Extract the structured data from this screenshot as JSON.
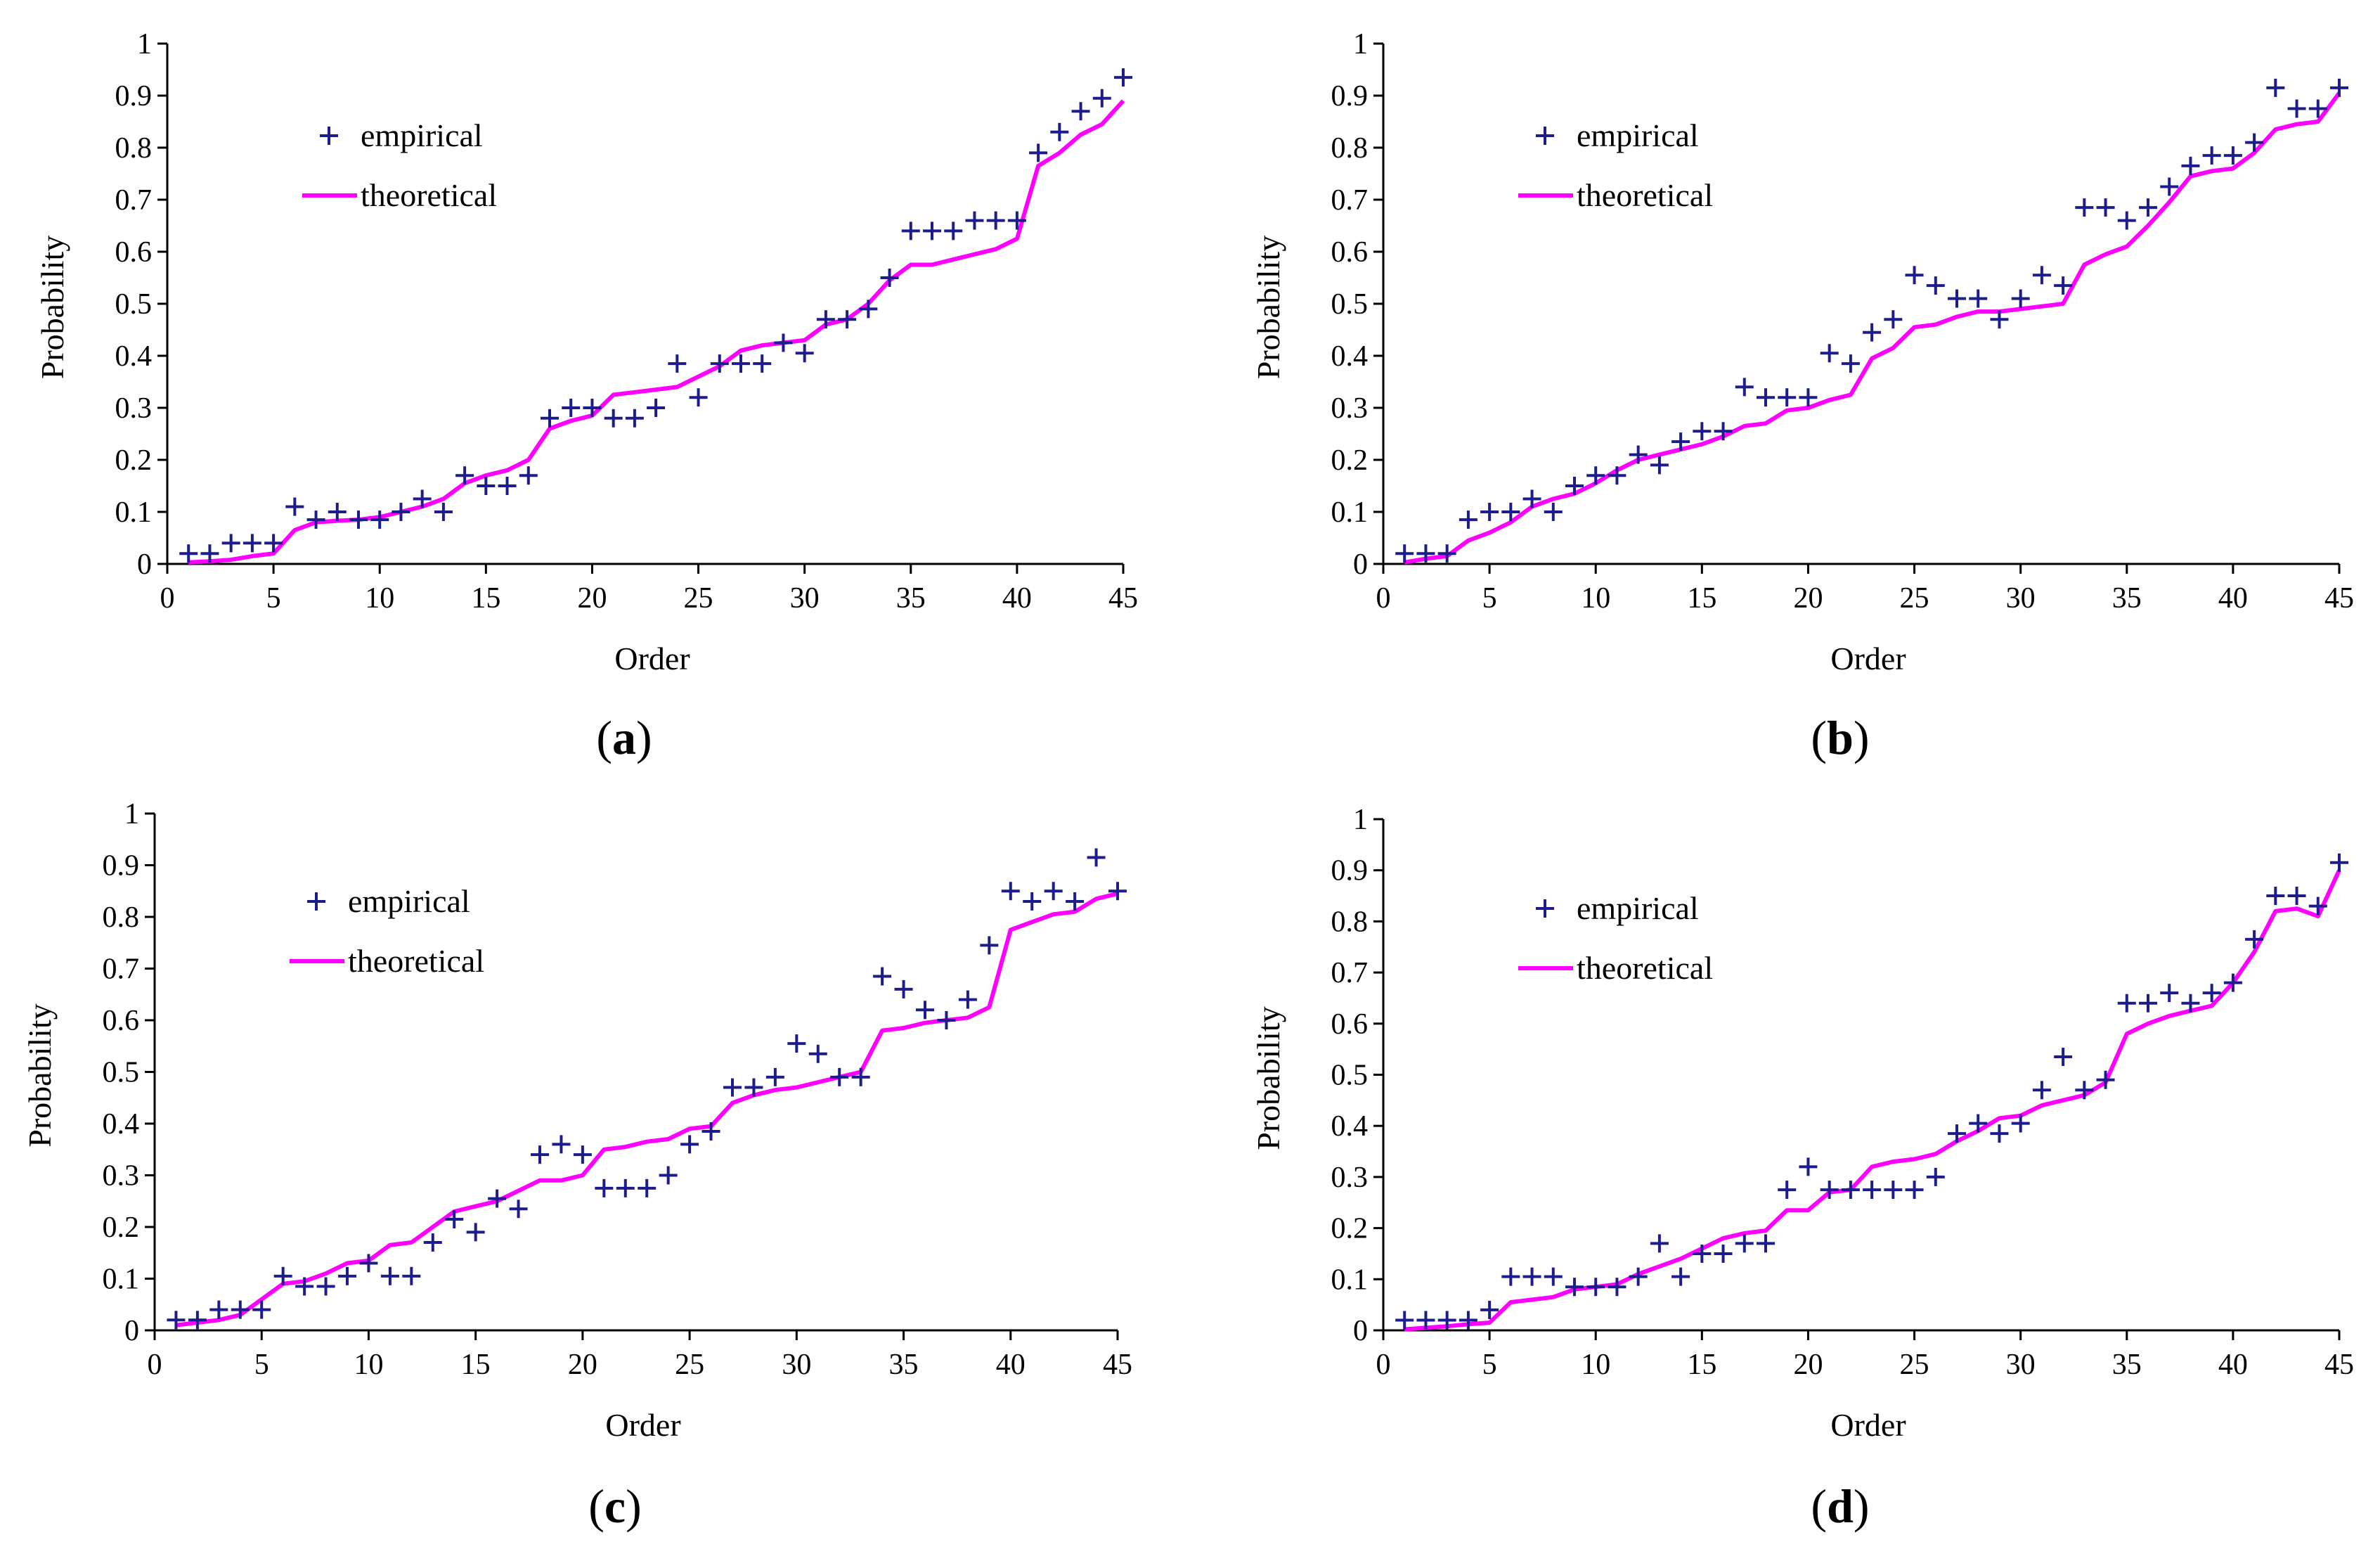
{
  "colors": {
    "empirical": "#1c1c8c",
    "theoretical": "#ff00ff",
    "axis": "#000000"
  },
  "chart_data": [
    {
      "type": "scatter",
      "panel": "a",
      "xlabel": "Order",
      "ylabel": "Probability",
      "xlim": [
        0,
        45
      ],
      "ylim": [
        0,
        1
      ],
      "xticks": [
        "0",
        "5",
        "10",
        "15",
        "20",
        "25",
        "30",
        "35",
        "40",
        "45"
      ],
      "yticks": [
        "0",
        "0.1",
        "0.2",
        "0.3",
        "0.4",
        "0.5",
        "0.6",
        "0.7",
        "0.8",
        "0.9",
        "1"
      ],
      "legend": {
        "empirical": "empirical",
        "theoretical": "theoretical"
      },
      "series": [
        {
          "name": "empirical",
          "values": [
            0.02,
            0.02,
            0.04,
            0.04,
            0.04,
            0.11,
            0.085,
            0.1,
            0.085,
            0.085,
            0.1,
            0.125,
            0.1,
            0.17,
            0.15,
            0.15,
            0.17,
            0.28,
            0.3,
            0.3,
            0.28,
            0.28,
            0.3,
            0.385,
            0.32,
            0.385,
            0.385,
            0.385,
            0.425,
            0.405,
            0.47,
            0.47,
            0.49,
            0.55,
            0.64,
            0.64,
            0.64,
            0.66,
            0.66,
            0.66,
            0.79,
            0.83,
            0.87,
            0.895,
            0.935
          ]
        },
        {
          "name": "theoretical",
          "values": [
            0.003,
            0.005,
            0.008,
            0.015,
            0.02,
            0.065,
            0.08,
            0.083,
            0.085,
            0.09,
            0.1,
            0.11,
            0.125,
            0.155,
            0.17,
            0.18,
            0.2,
            0.26,
            0.275,
            0.285,
            0.325,
            0.33,
            0.335,
            0.34,
            0.36,
            0.38,
            0.41,
            0.42,
            0.425,
            0.43,
            0.46,
            0.47,
            0.5,
            0.545,
            0.575,
            0.575,
            0.585,
            0.595,
            0.605,
            0.625,
            0.765,
            0.79,
            0.825,
            0.845,
            0.89
          ]
        }
      ]
    },
    {
      "type": "scatter",
      "panel": "b",
      "xlabel": "Order",
      "ylabel": "Probability",
      "xlim": [
        0,
        45
      ],
      "ylim": [
        0,
        1
      ],
      "xticks": [
        "0",
        "5",
        "10",
        "15",
        "20",
        "25",
        "30",
        "35",
        "40",
        "45"
      ],
      "yticks": [
        "0",
        "0.1",
        "0.2",
        "0.3",
        "0.4",
        "0.5",
        "0.6",
        "0.7",
        "0.8",
        "0.9",
        "1"
      ],
      "legend": {
        "empirical": "empirical",
        "theoretical": "theoretical"
      },
      "series": [
        {
          "name": "empirical",
          "values": [
            0.02,
            0.02,
            0.02,
            0.085,
            0.1,
            0.1,
            0.125,
            0.1,
            0.15,
            0.17,
            0.17,
            0.21,
            0.19,
            0.235,
            0.255,
            0.255,
            0.34,
            0.32,
            0.32,
            0.32,
            0.405,
            0.385,
            0.445,
            0.47,
            0.555,
            0.535,
            0.51,
            0.51,
            0.47,
            0.51,
            0.555,
            0.535,
            0.685,
            0.685,
            0.66,
            0.685,
            0.725,
            0.765,
            0.785,
            0.785,
            0.81,
            0.915,
            0.875,
            0.875,
            0.915
          ]
        },
        {
          "name": "theoretical",
          "values": [
            0.003,
            0.01,
            0.015,
            0.045,
            0.06,
            0.08,
            0.11,
            0.125,
            0.135,
            0.155,
            0.18,
            0.2,
            0.21,
            0.22,
            0.23,
            0.245,
            0.265,
            0.27,
            0.295,
            0.3,
            0.315,
            0.325,
            0.395,
            0.415,
            0.455,
            0.46,
            0.475,
            0.485,
            0.485,
            0.49,
            0.495,
            0.5,
            0.575,
            0.595,
            0.61,
            0.65,
            0.695,
            0.745,
            0.755,
            0.76,
            0.79,
            0.835,
            0.845,
            0.85,
            0.905
          ]
        }
      ]
    },
    {
      "type": "scatter",
      "panel": "c",
      "xlabel": "Order",
      "ylabel": "Probability",
      "xlim": [
        0,
        45
      ],
      "ylim": [
        0,
        1
      ],
      "xticks": [
        "0",
        "5",
        "10",
        "15",
        "20",
        "25",
        "30",
        "35",
        "40",
        "45"
      ],
      "yticks": [
        "0",
        "0.1",
        "0.2",
        "0.3",
        "0.4",
        "0.5",
        "0.6",
        "0.7",
        "0.8",
        "0.9",
        "1"
      ],
      "legend": {
        "empirical": "empirical",
        "theoretical": "theoretical"
      },
      "series": [
        {
          "name": "empirical",
          "values": [
            0.02,
            0.02,
            0.04,
            0.04,
            0.04,
            0.105,
            0.085,
            0.085,
            0.105,
            0.13,
            0.105,
            0.105,
            0.17,
            0.215,
            0.19,
            0.255,
            0.235,
            0.34,
            0.36,
            0.34,
            0.275,
            0.275,
            0.275,
            0.3,
            0.36,
            0.385,
            0.47,
            0.47,
            0.49,
            0.555,
            0.535,
            0.49,
            0.49,
            0.685,
            0.66,
            0.62,
            0.6,
            0.64,
            0.745,
            0.85,
            0.83,
            0.85,
            0.83,
            0.915,
            0.85
          ]
        },
        {
          "name": "theoretical",
          "values": [
            0.01,
            0.015,
            0.02,
            0.03,
            0.06,
            0.09,
            0.095,
            0.11,
            0.13,
            0.135,
            0.165,
            0.17,
            0.2,
            0.23,
            0.24,
            0.25,
            0.27,
            0.29,
            0.29,
            0.3,
            0.35,
            0.355,
            0.365,
            0.37,
            0.39,
            0.395,
            0.44,
            0.455,
            0.465,
            0.47,
            0.48,
            0.49,
            0.5,
            0.58,
            0.585,
            0.595,
            0.6,
            0.605,
            0.625,
            0.775,
            0.79,
            0.805,
            0.81,
            0.835,
            0.845
          ]
        }
      ]
    },
    {
      "type": "scatter",
      "panel": "d",
      "xlabel": "Order",
      "ylabel": "Probability",
      "xlim": [
        0,
        45
      ],
      "ylim": [
        0,
        1
      ],
      "xticks": [
        "0",
        "5",
        "10",
        "15",
        "20",
        "25",
        "30",
        "35",
        "40",
        "45"
      ],
      "yticks": [
        "0",
        "0.1",
        "0.2",
        "0.3",
        "0.4",
        "0.5",
        "0.6",
        "0.7",
        "0.8",
        "0.9",
        "1"
      ],
      "legend": {
        "empirical": "empirical",
        "theoretical": "theoretical"
      },
      "series": [
        {
          "name": "empirical",
          "values": [
            0.02,
            0.02,
            0.02,
            0.02,
            0.04,
            0.105,
            0.105,
            0.105,
            0.085,
            0.085,
            0.085,
            0.105,
            0.17,
            0.105,
            0.15,
            0.15,
            0.17,
            0.17,
            0.275,
            0.32,
            0.275,
            0.275,
            0.275,
            0.275,
            0.275,
            0.3,
            0.385,
            0.405,
            0.385,
            0.405,
            0.47,
            0.535,
            0.47,
            0.49,
            0.64,
            0.64,
            0.66,
            0.64,
            0.66,
            0.68,
            0.765,
            0.85,
            0.85,
            0.83,
            0.915
          ]
        },
        {
          "name": "theoretical",
          "values": [
            0.002,
            0.005,
            0.008,
            0.012,
            0.015,
            0.055,
            0.06,
            0.065,
            0.08,
            0.085,
            0.09,
            0.11,
            0.125,
            0.14,
            0.16,
            0.18,
            0.19,
            0.195,
            0.235,
            0.235,
            0.27,
            0.275,
            0.32,
            0.33,
            0.335,
            0.345,
            0.37,
            0.39,
            0.415,
            0.42,
            0.44,
            0.45,
            0.46,
            0.485,
            0.58,
            0.6,
            0.615,
            0.625,
            0.635,
            0.68,
            0.74,
            0.82,
            0.825,
            0.81,
            0.9
          ]
        }
      ]
    }
  ],
  "captions": [
    "a",
    "b",
    "c",
    "d"
  ]
}
